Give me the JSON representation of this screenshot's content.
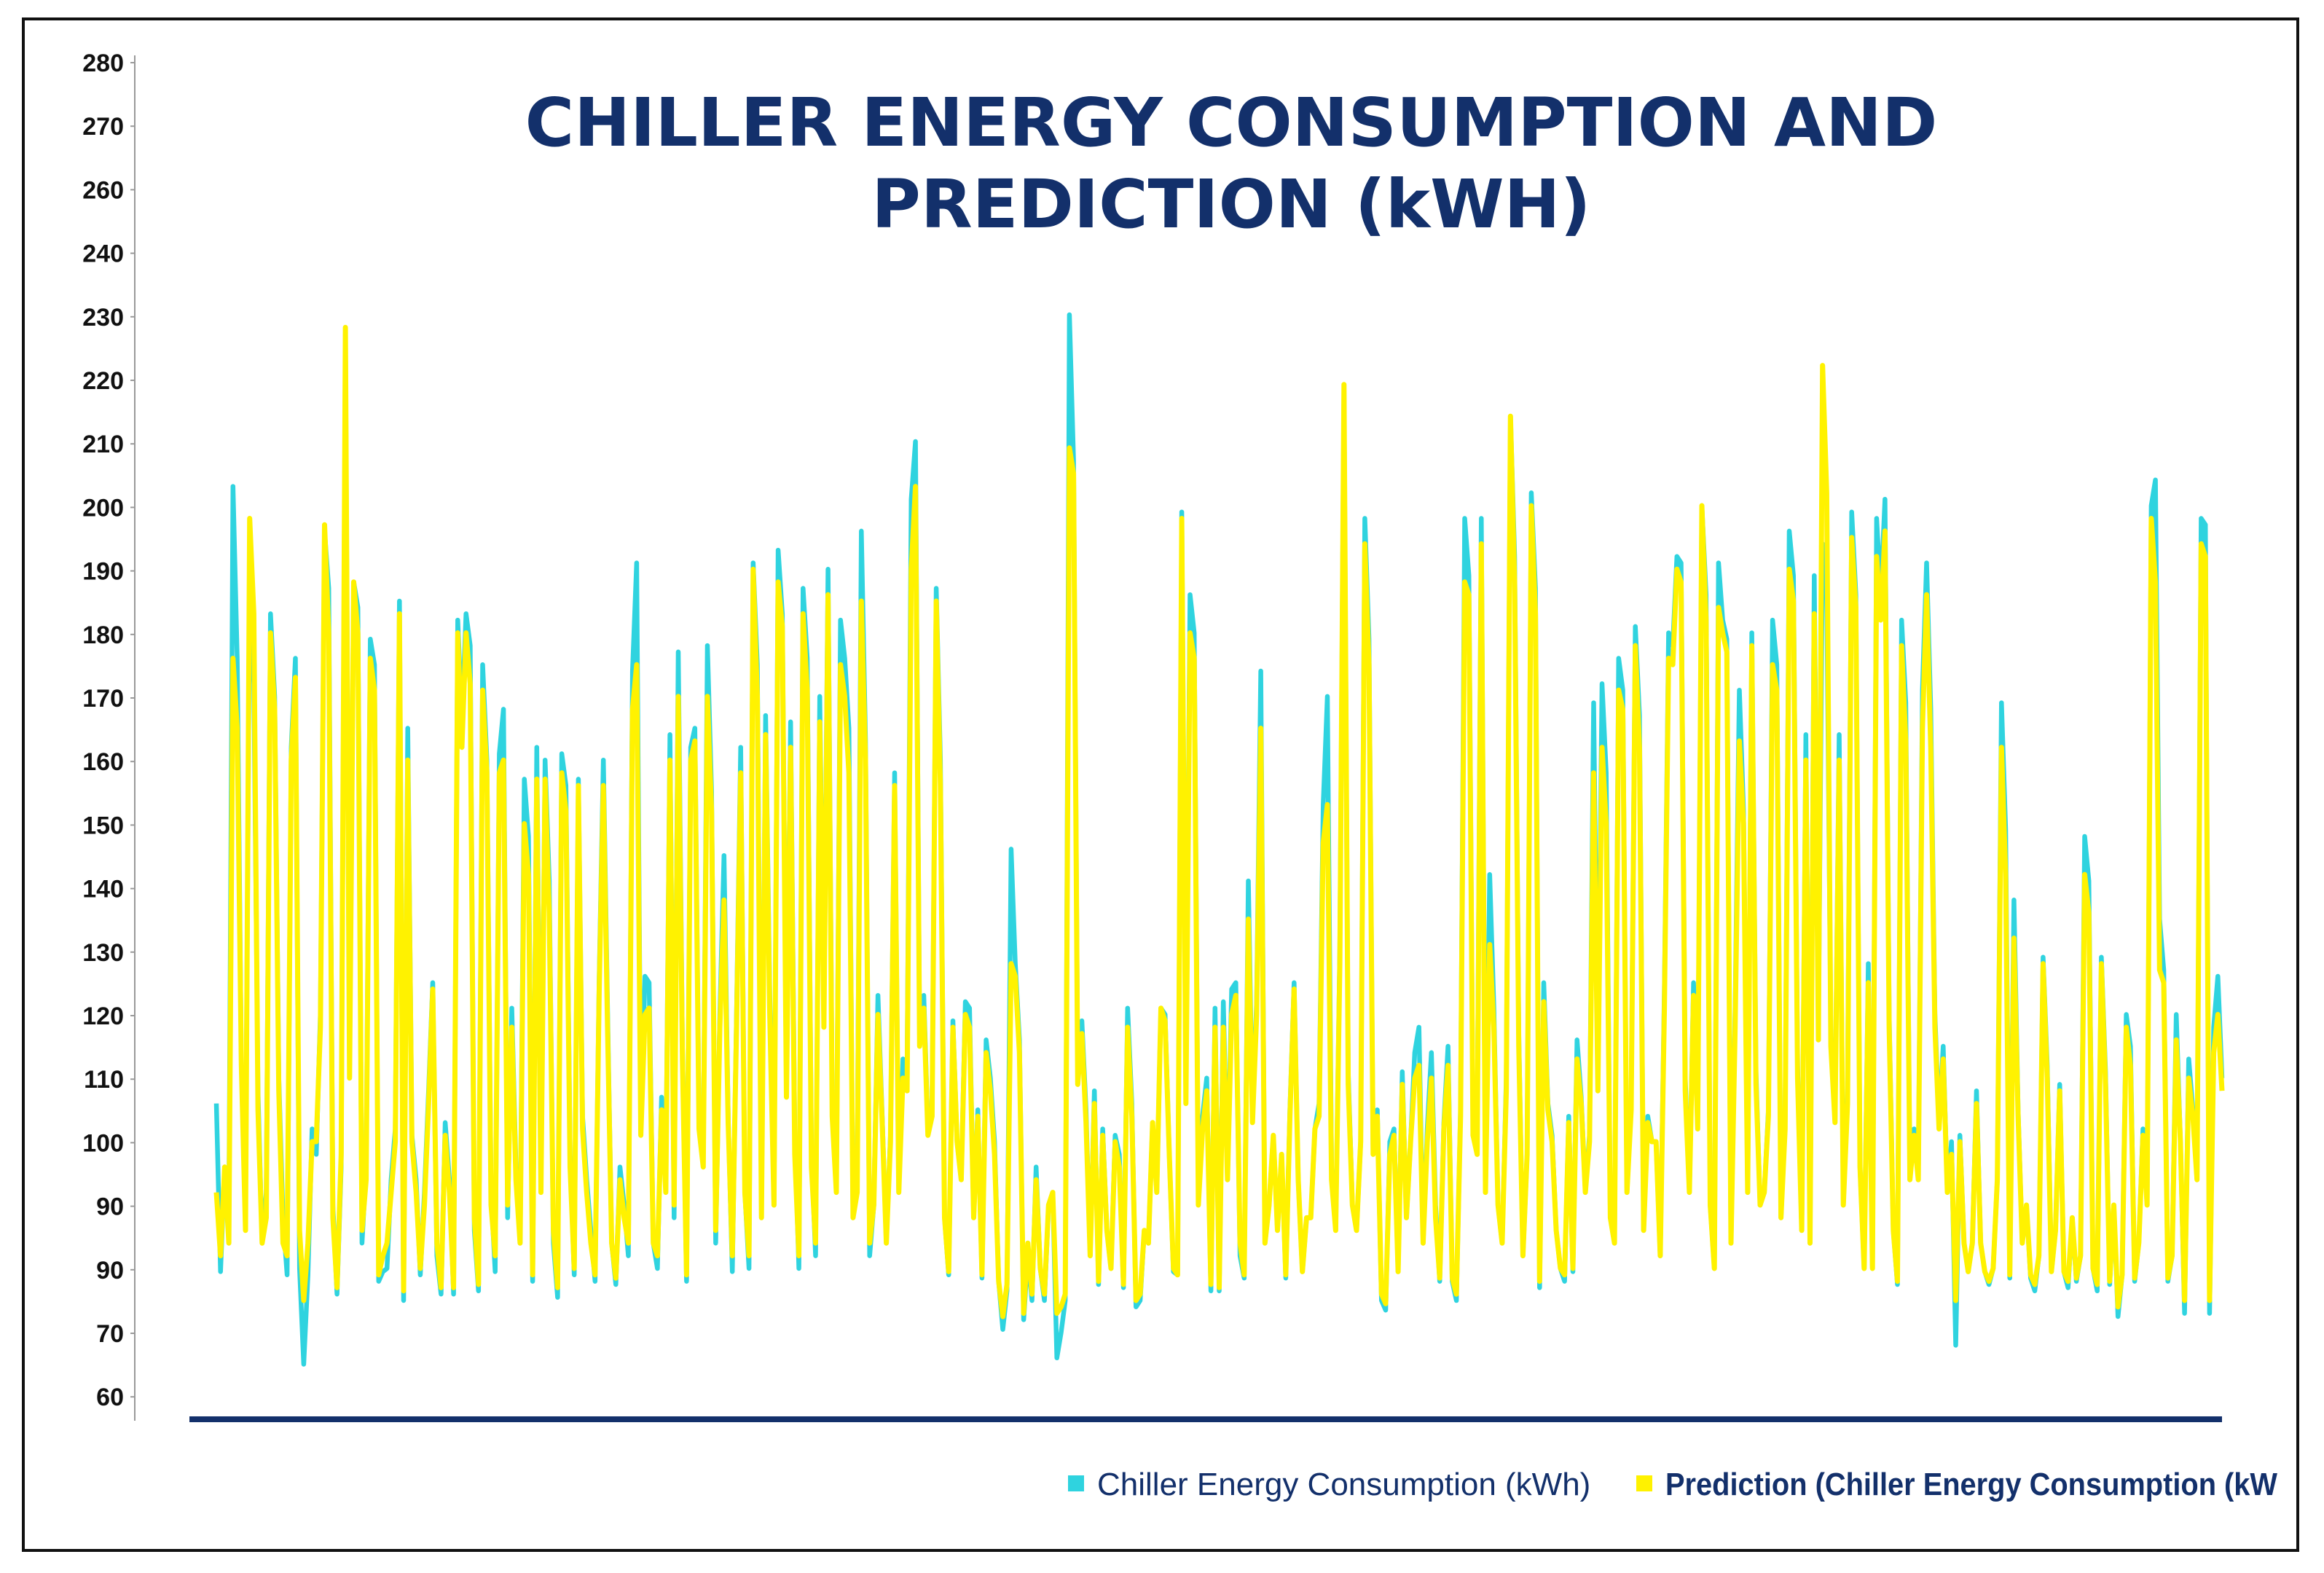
{
  "chart_data": {
    "type": "line",
    "title_lines": [
      "CHILLER ENERGY CONSUMPTION AND",
      "PREDICTION (kWH)"
    ],
    "xlabel": "",
    "ylabel": "",
    "y_tick_labels": [
      "280",
      "270",
      "260",
      "240",
      "230",
      "220",
      "210",
      "200",
      "190",
      "180",
      "170",
      "160",
      "150",
      "140",
      "130",
      "120",
      "110",
      "100",
      "90",
      "90",
      "70",
      "60"
    ],
    "ylim": [
      60,
      280
    ],
    "series": [
      {
        "name": "Chiller Energy Consumption (kWh)",
        "color": "#2fd3df",
        "values": [
          106,
          89,
          98,
          94,
          203,
          176,
          112,
          96,
          189,
          172,
          108,
          92,
          96,
          183,
          170,
          110,
          94,
          88,
          162,
          176,
          90,
          65,
          88,
          102,
          99,
          120,
          196,
          187,
          95,
          82,
          98,
          227,
          112,
          188,
          184,
          92,
          98,
          179,
          175,
          86,
          89,
          90,
          97,
          102,
          185,
          80,
          165,
          101,
          97,
          88,
          96,
          108,
          125,
          91,
          82,
          103,
          97,
          82,
          182,
          166,
          183,
          178,
          93,
          83,
          175,
          160,
          96,
          89,
          161,
          168,
          94,
          121,
          98,
          92,
          157,
          148,
          86,
          162,
          97,
          160,
          141,
          92,
          81,
          161,
          156,
          99,
          88,
          157,
          104,
          97,
          93,
          86,
          126,
          160,
          121,
          92,
          85,
          98,
          95,
          91,
          174,
          191,
          102,
          126,
          125,
          92,
          90,
          107,
          97,
          164,
          94,
          177,
          115,
          86,
          162,
          165,
          103,
          99,
          178,
          155,
          92,
          120,
          145,
          104,
          89,
          120,
          162,
          96,
          90,
          191,
          175,
          95,
          167,
          123,
          95,
          193,
          183,
          108,
          166,
          101,
          90,
          187,
          176,
          99,
          91,
          170,
          120,
          190,
          106,
          96,
          182,
          176,
          165,
          94,
          97,
          196,
          163,
          91,
          95,
          123,
          104,
          92,
          101,
          158,
          96,
          113,
          111,
          201,
          210,
          116,
          123,
          102,
          105,
          187,
          160,
          94,
          88,
          119,
          100,
          97,
          122,
          121,
          94,
          105,
          87,
          116,
          110,
          100,
          86,
          71,
          83,
          146,
          128,
          116,
          74,
          91,
          80,
          98,
          90,
          80,
          95,
          96,
          66,
          70,
          80,
          230,
          207,
          111,
          119,
          105,
          91,
          108,
          85,
          102,
          93,
          90,
          101,
          99,
          84,
          121,
          106,
          78,
          80,
          93,
          92,
          103,
          96,
          121,
          120,
          99,
          89,
          88,
          199,
          108,
          186,
          180,
          96,
          104,
          110,
          83,
          121,
          83,
          122,
          97,
          124,
          125,
          91,
          87,
          141,
          104,
          122,
          174,
          92,
          95,
          101,
          93,
          99,
          87,
          105,
          125,
          97,
          89,
          94,
          94,
          102,
          106,
          153,
          170,
          98,
          93,
          130,
          218,
          111,
          95,
          93,
          100,
          198,
          179,
          99,
          105,
          80,
          77,
          100,
          102,
          89,
          111,
          94,
          100,
          114,
          118,
          92,
          102,
          114,
          95,
          86,
          103,
          115,
          86,
          80,
          105,
          198,
          189,
          102,
          100,
          198,
          96,
          142,
          121,
          95,
          92,
          110,
          214,
          192,
          117,
          91,
          99,
          202,
          187,
          84,
          125,
          106,
          101,
          93,
          90,
          86,
          104,
          89,
          116,
          107,
          96,
          101,
          169,
          110,
          172,
          158,
          94,
          92,
          176,
          171,
          96,
          106,
          181,
          167,
          93,
          104,
          100,
          100,
          91,
          124,
          180,
          178,
          192,
          191,
          110,
          96,
          125,
          103,
          200,
          186,
          95,
          90,
          191,
          182,
          179,
          92,
          121,
          171,
          152,
          96,
          180,
          111,
          95,
          96,
          105,
          182,
          175,
          94,
          103,
          196,
          189,
          112,
          93,
          164,
          92,
          189,
          119,
          194,
          187,
          117,
          103,
          164,
          95,
          108,
          199,
          186,
          98,
          90,
          128,
          90,
          198,
          186,
          201,
          120,
          93,
          85,
          182,
          169,
          97,
          102,
          97,
          171,
          191,
          168,
          120,
          103,
          115,
          96,
          100,
          68,
          101,
          92,
          89,
          92,
          108,
          92,
          89,
          85,
          90,
          97,
          169,
          149,
          87,
          138,
          105,
          92,
          95,
          87,
          83,
          91,
          129,
          112,
          89,
          93,
          109,
          89,
          84,
          94,
          86,
          91,
          148,
          141,
          90,
          83,
          129,
          111,
          85,
          95,
          75,
          88,
          120,
          115,
          86,
          92,
          102,
          95,
          200,
          204,
          135,
          127,
          86,
          91,
          120,
          100,
          76,
          113,
          105,
          97,
          198,
          197,
          76,
          118,
          126,
          110
        ]
      },
      {
        "name": "Prediction (Chiller Energy Consumption (kW",
        "color": "#fff200",
        "values": [
          96,
          91,
          98,
          92,
          176,
          165,
          112,
          93,
          198,
          183,
          105,
          92,
          94,
          180,
          168,
          108,
          92,
          91,
          160,
          173,
          93,
          80,
          92,
          100,
          100,
          118,
          197,
          180,
          94,
          84,
          99,
          228,
          110,
          188,
          180,
          93,
          97,
          176,
          171,
          88,
          91,
          92,
          96,
          100,
          183,
          83,
          160,
          100,
          96,
          90,
          95,
          106,
          124,
          92,
          84,
          101,
          96,
          84,
          180,
          162,
          180,
          172,
          94,
          85,
          171,
          158,
          95,
          91,
          158,
          160,
          95,
          118,
          97,
          92,
          150,
          142,
          88,
          157,
          96,
          157,
          136,
          93,
          84,
          158,
          152,
          98,
          90,
          156,
          102,
          96,
          92,
          88,
          124,
          156,
          118,
          92,
          87,
          97,
          94,
          92,
          168,
          175,
          101,
          120,
          121,
          92,
          91,
          105,
          96,
          160,
          95,
          170,
          113,
          88,
          160,
          163,
          102,
          98,
          170,
          152,
          93,
          118,
          138,
          103,
          91,
          118,
          158,
          96,
          91,
          190,
          170,
          94,
          164,
          120,
          95,
          188,
          181,
          107,
          162,
          99,
          91,
          183,
          171,
          98,
          92,
          166,
          118,
          186,
          104,
          96,
          175,
          170,
          158,
          94,
          96,
          185,
          160,
          92,
          95,
          120,
          103,
          92,
          100,
          156,
          96,
          110,
          108,
          190,
          203,
          115,
          121,
          101,
          104,
          185,
          156,
          94,
          89,
          118,
          100,
          97,
          120,
          118,
          94,
          104,
          88,
          114,
          108,
          99,
          86,
          75,
          85,
          128,
          126,
          114,
          76,
          92,
          82,
          97,
          90,
          82,
          95,
          96,
          76,
          78,
          82,
          209,
          205,
          109,
          117,
          103,
          91,
          106,
          86,
          101,
          93,
          90,
          100,
          98,
          85,
          118,
          104,
          80,
          82,
          93,
          92,
          103,
          96,
          121,
          119,
          99,
          90,
          88,
          198,
          106,
          180,
          176,
          95,
          102,
          108,
          85,
          118,
          84,
          118,
          97,
          120,
          123,
          92,
          88,
          135,
          103,
          120,
          165,
          92,
          95,
          101,
          93,
          99,
          88,
          104,
          124,
          97,
          89,
          94,
          94,
          102,
          104,
          147,
          153,
          97,
          93,
          128,
          219,
          109,
          95,
          93,
          100,
          194,
          175,
          99,
          104,
          82,
          79,
          99,
          101,
          89,
          109,
          94,
          100,
          110,
          112,
          92,
          100,
          110,
          94,
          87,
          102,
          112,
          87,
          82,
          104,
          188,
          186,
          101,
          99,
          194,
          96,
          131,
          118,
          95,
          92,
          108,
          214,
          188,
          115,
          91,
          99,
          200,
          183,
          86,
          122,
          105,
          100,
          93,
          90,
          88,
          103,
          90,
          113,
          106,
          96,
          100,
          158,
          108,
          162,
          150,
          94,
          92,
          171,
          168,
          96,
          105,
          178,
          162,
          93,
          103,
          100,
          100,
          91,
          121,
          176,
          175,
          190,
          188,
          108,
          96,
          123,
          102,
          200,
          182,
          95,
          90,
          184,
          180,
          177,
          92,
          118,
          163,
          150,
          96,
          178,
          109,
          95,
          96,
          104,
          175,
          171,
          94,
          102,
          190,
          185,
          110,
          93,
          160,
          92,
          183,
          116,
          222,
          202,
          115,
          103,
          160,
          95,
          106,
          195,
          184,
          98,
          90,
          125,
          90,
          192,
          182,
          196,
          118,
          93,
          86,
          178,
          163,
          97,
          101,
          97,
          165,
          186,
          162,
          118,
          102,
          113,
          96,
          99,
          80,
          100,
          92,
          89,
          92,
          106,
          92,
          89,
          86,
          90,
          97,
          162,
          142,
          88,
          132,
          104,
          92,
          95,
          88,
          85,
          91,
          128,
          110,
          89,
          93,
          108,
          89,
          86,
          94,
          87,
          91,
          142,
          136,
          90,
          85,
          128,
          109,
          86,
          95,
          78,
          88,
          118,
          112,
          87,
          92,
          101,
          95,
          198,
          188,
          127,
          125,
          87,
          91,
          116,
          100,
          80,
          110,
          104,
          97,
          194,
          192,
          80,
          114,
          120,
          108
        ]
      }
    ],
    "legend": {
      "position": "bottom-right",
      "items": [
        {
          "label": "Chiller Energy Consumption (kWh)",
          "color": "#2fd3df"
        },
        {
          "label": "Prediction (Chiller Energy Consumption (kW",
          "color": "#fff200"
        }
      ]
    },
    "baseline_color": "#13306b"
  }
}
